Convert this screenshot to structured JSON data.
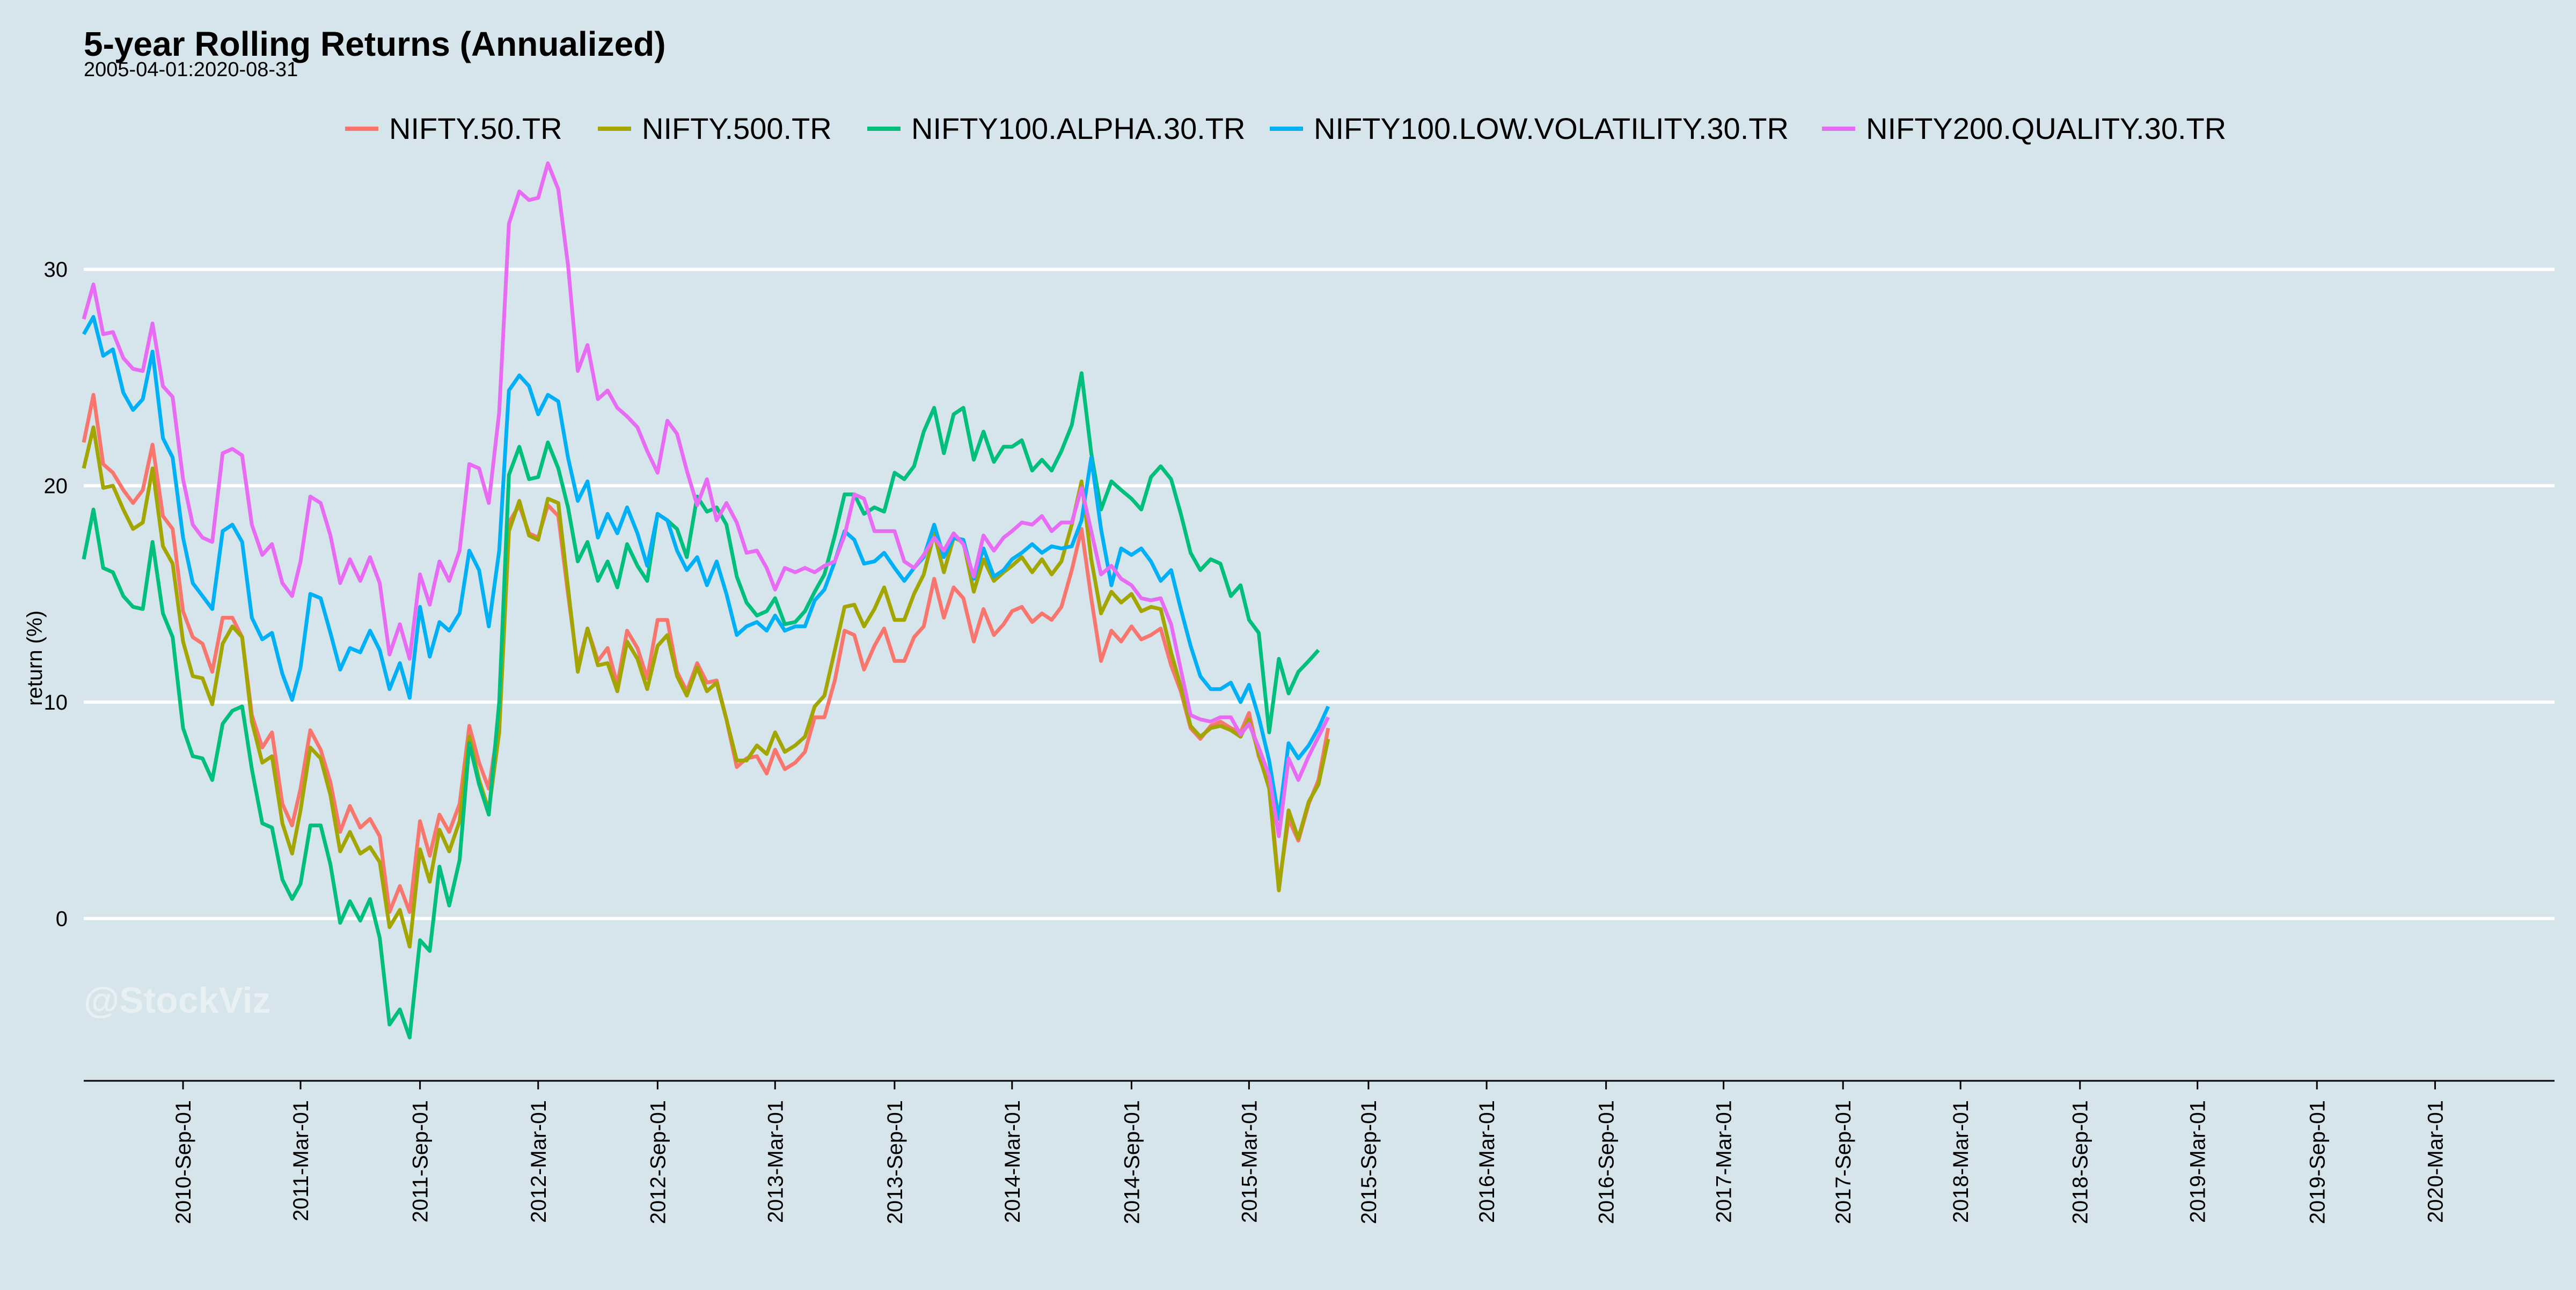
{
  "chart_data": {
    "type": "line",
    "title": "5-year Rolling Returns (Annualized)",
    "subtitle": "2005-04-01:2020-08-31",
    "ylabel": "return (%)",
    "watermark": "@StockViz",
    "legend_position": "top",
    "grid": "horizontal major lines",
    "ylim": [
      -7.5,
      36
    ],
    "yticks": [
      0,
      10,
      20,
      30
    ],
    "xlim": [
      "2010-04-01",
      "2020-09-01"
    ],
    "xticks": [
      "2010-Sep-01",
      "2011-Mar-01",
      "2011-Sep-01",
      "2012-Mar-01",
      "2012-Sep-01",
      "2013-Mar-01",
      "2013-Sep-01",
      "2014-Mar-01",
      "2014-Sep-01",
      "2015-Mar-01",
      "2015-Sep-01",
      "2016-Mar-01",
      "2016-Sep-01",
      "2017-Mar-01",
      "2017-Sep-01",
      "2018-Mar-01",
      "2018-Sep-01",
      "2019-Mar-01",
      "2019-Sep-01",
      "2020-Mar-01"
    ],
    "x_start": "2010-04-01",
    "x_frequency": "semi-monthly (24 points per year)",
    "series": [
      {
        "name": "NIFTY.50.TR",
        "color": "#f8766d",
        "values": [
          22.0,
          24.2,
          21.0,
          20.6,
          19.8,
          19.2,
          19.8,
          21.9,
          18.6,
          18.0,
          14.2,
          13.0,
          12.7,
          11.4,
          13.9,
          13.9,
          13.0,
          9.4,
          7.9,
          8.6,
          5.3,
          4.3,
          6.0,
          8.7,
          7.8,
          6.3,
          4.0,
          5.2,
          4.2,
          4.6,
          3.8,
          0.3,
          1.5,
          0.3,
          4.5,
          2.9,
          4.8,
          4.0,
          5.3,
          8.9,
          7.2,
          6.0,
          9.2,
          18.3,
          19.1,
          17.8,
          17.6,
          19.1,
          18.6,
          15.0,
          11.6,
          13.4,
          11.9,
          12.5,
          10.8,
          13.3,
          12.5,
          11.1,
          13.8,
          13.8,
          11.4,
          10.5,
          11.8,
          10.9,
          11.0,
          9.2,
          7.0,
          7.4,
          7.5,
          6.7,
          7.8,
          6.9,
          7.2,
          7.7,
          9.3,
          9.3,
          11.0,
          13.3,
          13.1,
          11.5,
          12.6,
          13.4,
          11.9,
          11.9,
          13.0,
          13.5,
          15.7,
          13.9,
          15.3,
          14.8,
          12.8,
          14.3,
          13.1,
          13.6,
          14.2,
          14.4,
          13.7,
          14.1,
          13.8,
          14.4,
          16.1,
          18.0,
          14.8,
          11.9,
          13.3,
          12.8,
          13.5,
          12.9,
          13.1,
          13.4,
          11.7,
          10.5,
          8.8,
          8.3,
          8.9,
          9.1,
          8.8,
          8.6,
          9.5,
          7.5,
          6.2,
          1.5,
          4.6,
          3.6,
          5.3,
          6.4,
          8.8
        ]
      },
      {
        "name": "NIFTY.500.TR",
        "color": "#a3a500",
        "values": [
          20.8,
          22.7,
          19.9,
          20.0,
          18.9,
          18.0,
          18.3,
          20.8,
          17.2,
          16.4,
          12.8,
          11.2,
          11.1,
          9.9,
          12.7,
          13.5,
          13.0,
          9.1,
          7.2,
          7.5,
          4.4,
          3.0,
          5.0,
          7.9,
          7.4,
          5.7,
          3.1,
          4.0,
          3.0,
          3.3,
          2.6,
          -0.4,
          0.4,
          -1.3,
          3.2,
          1.7,
          4.1,
          3.1,
          4.5,
          8.4,
          6.4,
          5.0,
          8.6,
          17.9,
          19.3,
          17.7,
          17.5,
          19.4,
          19.2,
          15.3,
          11.4,
          13.4,
          11.7,
          11.8,
          10.5,
          12.8,
          12.0,
          10.6,
          12.6,
          13.1,
          11.2,
          10.3,
          11.6,
          10.5,
          10.9,
          9.2,
          7.3,
          7.3,
          8.0,
          7.6,
          8.6,
          7.7,
          8.0,
          8.4,
          9.8,
          10.3,
          12.4,
          14.4,
          14.5,
          13.5,
          14.3,
          15.3,
          13.8,
          13.8,
          15.0,
          15.9,
          17.8,
          16.0,
          17.6,
          17.4,
          15.1,
          16.6,
          15.6,
          16.0,
          16.3,
          16.7,
          16.0,
          16.6,
          15.9,
          16.5,
          18.2,
          20.2,
          16.6,
          14.1,
          15.1,
          14.6,
          15.0,
          14.2,
          14.4,
          14.3,
          12.3,
          10.7,
          8.9,
          8.4,
          8.8,
          8.9,
          8.7,
          8.4,
          9.2,
          7.6,
          6.0,
          1.3,
          5.0,
          3.7,
          5.4,
          6.2,
          8.3
        ]
      },
      {
        "name": "NIFTY100.ALPHA.30.TR",
        "color": "#00bf7d",
        "values": [
          16.6,
          18.9,
          16.2,
          16.0,
          14.9,
          14.4,
          14.3,
          17.4,
          14.1,
          13.0,
          8.8,
          7.5,
          7.4,
          6.4,
          9.0,
          9.6,
          9.8,
          6.9,
          4.4,
          4.2,
          1.8,
          0.9,
          1.6,
          4.3,
          4.3,
          2.5,
          -0.2,
          0.8,
          -0.1,
          0.9,
          -0.9,
          -4.9,
          -4.2,
          -5.5,
          -1.0,
          -1.5,
          2.4,
          0.6,
          2.7,
          8.1,
          6.2,
          4.8,
          10.0,
          20.5,
          21.8,
          20.3,
          20.4,
          22.0,
          20.8,
          19.0,
          16.5,
          17.4,
          15.6,
          16.5,
          15.3,
          17.3,
          16.3,
          15.6,
          18.7,
          18.4,
          18.0,
          16.7,
          19.5,
          18.8,
          19.0,
          18.2,
          15.8,
          14.6,
          14.0,
          14.2,
          14.8,
          13.6,
          13.7,
          14.2,
          15.1,
          15.9,
          17.7,
          19.6,
          19.6,
          18.7,
          19.0,
          18.8,
          20.6,
          20.3,
          20.9,
          22.5,
          23.6,
          21.5,
          23.3,
          23.6,
          21.2,
          22.5,
          21.1,
          21.8,
          21.8,
          22.1,
          20.7,
          21.2,
          20.7,
          21.6,
          22.8,
          25.2,
          21.5,
          18.9,
          20.2,
          19.8,
          19.4,
          18.9,
          20.4,
          20.9,
          20.3,
          18.7,
          16.9,
          16.1,
          16.6,
          16.4,
          14.9,
          15.4,
          13.8,
          13.2,
          8.6,
          12.0,
          10.4,
          11.4,
          11.9,
          12.4
        ]
      },
      {
        "name": "NIFTY100.LOW.VOLATILITY.30.TR",
        "color": "#00b0f6",
        "values": [
          27.0,
          27.8,
          26.0,
          26.3,
          24.3,
          23.5,
          24.0,
          26.2,
          22.2,
          21.3,
          17.6,
          15.5,
          14.9,
          14.3,
          17.9,
          18.2,
          17.4,
          13.9,
          12.9,
          13.2,
          11.3,
          10.1,
          11.6,
          15.0,
          14.8,
          13.2,
          11.5,
          12.5,
          12.3,
          13.3,
          12.4,
          10.6,
          11.8,
          10.2,
          14.4,
          12.1,
          13.7,
          13.3,
          14.1,
          17.0,
          16.1,
          13.5,
          17.0,
          24.4,
          25.1,
          24.6,
          23.3,
          24.2,
          23.9,
          21.3,
          19.3,
          20.2,
          17.6,
          18.7,
          17.8,
          19.0,
          17.8,
          16.3,
          18.7,
          18.4,
          17.0,
          16.1,
          16.7,
          15.4,
          16.5,
          15.0,
          13.1,
          13.5,
          13.7,
          13.3,
          14.0,
          13.3,
          13.5,
          13.5,
          14.7,
          15.2,
          16.5,
          17.9,
          17.5,
          16.4,
          16.5,
          16.9,
          16.2,
          15.6,
          16.2,
          16.7,
          18.2,
          16.7,
          17.6,
          17.5,
          15.7,
          17.1,
          15.8,
          16.1,
          16.6,
          16.9,
          17.3,
          16.9,
          17.2,
          17.1,
          17.2,
          18.4,
          21.3,
          18.0,
          15.4,
          17.1,
          16.8,
          17.1,
          16.5,
          15.6,
          16.1,
          14.3,
          12.6,
          11.2,
          10.6,
          10.6,
          10.9,
          10.0,
          10.8,
          9.3,
          7.3,
          4.6,
          8.1,
          7.4,
          8.0,
          8.8,
          9.8
        ]
      },
      {
        "name": "NIFTY200.QUALITY.30.TR",
        "color": "#e76bf3",
        "values": [
          27.7,
          29.3,
          27.0,
          27.1,
          25.9,
          25.4,
          25.3,
          27.5,
          24.6,
          24.1,
          20.3,
          18.2,
          17.6,
          17.4,
          21.5,
          21.7,
          21.4,
          18.2,
          16.8,
          17.3,
          15.5,
          14.9,
          16.5,
          19.5,
          19.2,
          17.7,
          15.5,
          16.6,
          15.6,
          16.7,
          15.5,
          12.2,
          13.6,
          12.0,
          15.9,
          14.5,
          16.5,
          15.6,
          17.0,
          21.0,
          20.8,
          19.2,
          23.4,
          32.1,
          33.6,
          33.2,
          33.3,
          34.9,
          33.7,
          30.2,
          25.3,
          26.5,
          24.0,
          24.4,
          23.6,
          23.2,
          22.7,
          21.6,
          20.6,
          23.0,
          22.4,
          20.7,
          19.1,
          20.3,
          18.4,
          19.2,
          18.3,
          16.9,
          17.0,
          16.2,
          15.2,
          16.2,
          16.0,
          16.2,
          16.0,
          16.3,
          16.5,
          17.7,
          19.6,
          19.4,
          17.9,
          17.9,
          17.9,
          16.5,
          16.2,
          16.8,
          17.6,
          17.0,
          17.8,
          17.3,
          15.8,
          17.7,
          17.0,
          17.6,
          17.9,
          18.3,
          18.2,
          18.6,
          17.9,
          18.3,
          18.3,
          19.9,
          17.9,
          15.9,
          16.3,
          15.7,
          15.4,
          14.8,
          14.7,
          14.8,
          13.6,
          11.5,
          9.4,
          9.2,
          9.1,
          9.3,
          9.3,
          8.5,
          9.0,
          7.9,
          6.6,
          3.8,
          7.4,
          6.4,
          7.5,
          8.4,
          9.3
        ]
      }
    ]
  }
}
